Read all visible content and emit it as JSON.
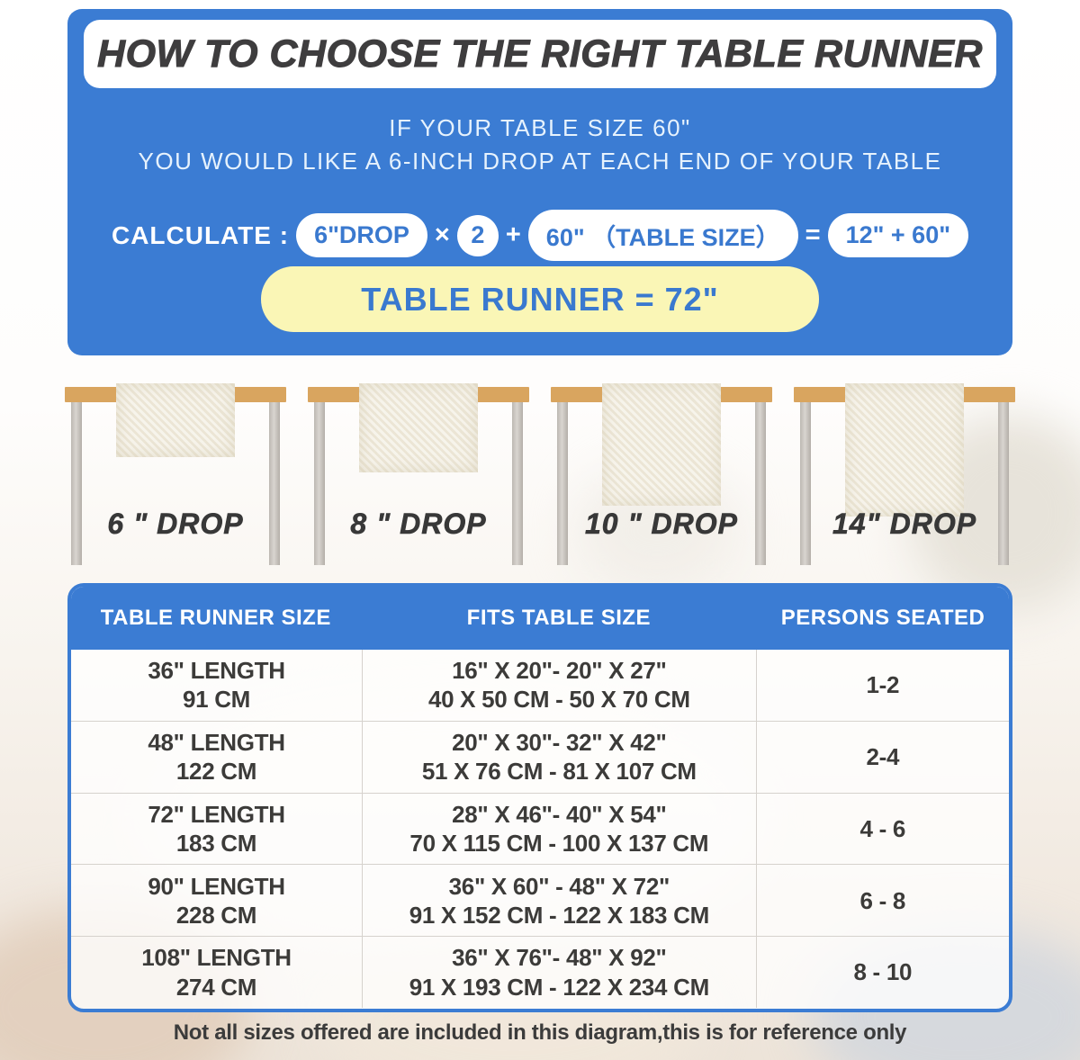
{
  "header": {
    "title": "HOW TO CHOOSE THE RIGHT TABLE RUNNER",
    "subtitle_line1": "IF YOUR TABLE SIZE 60\"",
    "subtitle_line2": "YOU WOULD LIKE A 6-INCH DROP AT EACH END OF YOUR TABLE",
    "calculate_label": "CALCULATE :",
    "formula": {
      "drop_pill": "6\"DROP",
      "times": "×",
      "multiplier": "2",
      "plus": "+",
      "table_size_pill": "60\" （TABLE SIZE）",
      "equals": "=",
      "result_pill": "12\" + 60\""
    },
    "result_banner": "TABLE RUNNER = 72\""
  },
  "drops": [
    {
      "label": "6 \" DROP",
      "drop_inches": 6
    },
    {
      "label": "8 \" DROP",
      "drop_inches": 8
    },
    {
      "label": "10 \" DROP",
      "drop_inches": 10
    },
    {
      "label": "14\" DROP",
      "drop_inches": 14
    }
  ],
  "size_table": {
    "columns": [
      "TABLE RUNNER SIZE",
      "FITS TABLE SIZE",
      "PERSONS SEATED"
    ],
    "rows": [
      {
        "runner_in": "36\" LENGTH",
        "runner_cm": "91 CM",
        "fits_in": "16\" X 20\"- 20\" X 27\"",
        "fits_cm": "40 X 50 CM - 50 X 70 CM",
        "persons": "1-2"
      },
      {
        "runner_in": "48\" LENGTH",
        "runner_cm": "122 CM",
        "fits_in": "20\" X 30\"- 32\" X 42\"",
        "fits_cm": "51 X 76 CM - 81 X 107 CM",
        "persons": "2-4"
      },
      {
        "runner_in": "72\" LENGTH",
        "runner_cm": "183 CM",
        "fits_in": "28\" X 46\"- 40\" X 54\"",
        "fits_cm": "70 X 115 CM - 100 X 137 CM",
        "persons": "4 - 6"
      },
      {
        "runner_in": "90\" LENGTH",
        "runner_cm": "228 CM",
        "fits_in": "36\" X 60\" - 48\" X 72\"",
        "fits_cm": "91 X 152 CM - 122 X 183 CM",
        "persons": "6 - 8"
      },
      {
        "runner_in": "108\" LENGTH",
        "runner_cm": "274 CM",
        "fits_in": "36\" X 76\"- 48\" X 92\"",
        "fits_cm": "91 X 193 CM - 122 X 234 CM",
        "persons": "8 - 10"
      }
    ]
  },
  "footnote": "Not all sizes offered are included in this diagram,this is for reference only",
  "colors": {
    "primary_blue": "#3b7cd3",
    "pill_text_blue": "#3a79cf",
    "result_yellow": "#faf6b6",
    "tabletop_tan": "#d9a55f",
    "runner_cream": "#f1ecde",
    "leg_gray": "#c7c3be",
    "title_dark": "#3e3d3e"
  }
}
